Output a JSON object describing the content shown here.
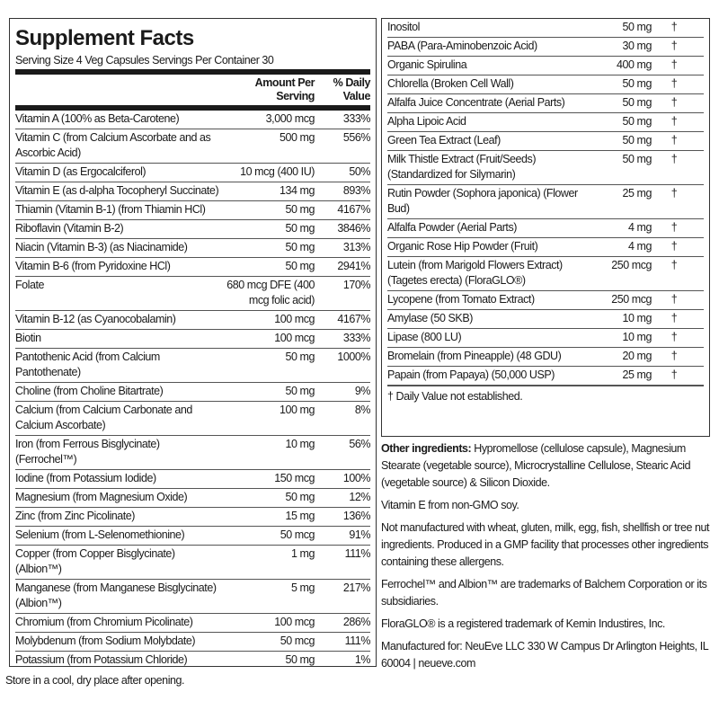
{
  "label": {
    "title": "Supplement Facts",
    "serving": "Serving Size 4 Veg Capsules  Servings Per Container 30",
    "header": {
      "amount": "Amount Per Serving",
      "daily_value": "% Daily Value"
    },
    "rows": [
      [
        "Vitamin A (100% as Beta-Carotene)",
        "3,000 mcg",
        "333%"
      ],
      [
        "Vitamin C (from Calcium Ascorbate and as Ascorbic Acid)",
        "500 mg",
        "556%"
      ],
      [
        "Vitamin D (as Ergocalciferol)",
        "10 mcg (400 IU)",
        "50%"
      ],
      [
        "Vitamin E (as d-alpha Tocopheryl Succinate)",
        "134 mg",
        "893%"
      ],
      [
        "Thiamin (Vitamin B-1) (from Thiamin HCl)",
        "50 mg",
        "4167%"
      ],
      [
        "Riboflavin (Vitamin B-2)",
        "50 mg",
        "3846%"
      ],
      [
        "Niacin (Vitamin B-3) (as Niacinamide)",
        "50 mg",
        "313%"
      ],
      [
        "Vitamin B-6 (from Pyridoxine HCl)",
        "50 mg",
        "2941%"
      ],
      [
        "Folate",
        "680 mcg DFE (400 mcg folic acid)",
        "170%"
      ],
      [
        "Vitamin B-12 (as Cyanocobalamin)",
        "100 mcg",
        "4167%"
      ],
      [
        "Biotin",
        "100 mcg",
        "333%"
      ],
      [
        "Pantothenic Acid (from Calcium Pantothenate)",
        "50 mg",
        "1000%"
      ],
      [
        "Choline (from Choline Bitartrate)",
        "50 mg",
        "9%"
      ],
      [
        "Calcium (from Calcium Carbonate and Calcium Ascorbate)",
        "100 mg",
        "8%"
      ],
      [
        "Iron (from Ferrous Bisglycinate) (Ferrochel™)",
        "10 mg",
        "56%"
      ],
      [
        "Iodine (from Potassium Iodide)",
        "150 mcg",
        "100%"
      ],
      [
        "Magnesium (from Magnesium Oxide)",
        "50 mg",
        "12%"
      ],
      [
        "Zinc (from Zinc Picolinate)",
        "15 mg",
        "136%"
      ],
      [
        "Selenium (from L-Selenomethionine)",
        "50 mcg",
        "91%"
      ],
      [
        "Copper (from Copper Bisglycinate) (Albion™)",
        "1 mg",
        "111%"
      ],
      [
        "Manganese (from Manganese Bisglycinate) (Albion™)",
        "5 mg",
        "217%"
      ],
      [
        "Chromium (from Chromium Picolinate)",
        "100 mcg",
        "286%"
      ],
      [
        "Molybdenum (from Sodium Molybdate)",
        "50 mcg",
        "111%"
      ],
      [
        "Potassium (from Potassium Chloride)",
        "50 mg",
        "1%"
      ]
    ],
    "right_rows": [
      [
        "Inositol",
        "50 mg",
        "†"
      ],
      [
        "PABA (Para-Aminobenzoic Acid)",
        "30 mg",
        "†"
      ],
      [
        "Organic Spirulina",
        "400 mg",
        "†"
      ],
      [
        "Chlorella (Broken Cell Wall)",
        "50 mg",
        "†"
      ],
      [
        "Alfalfa Juice Concentrate (Aerial Parts)",
        "50 mg",
        "†"
      ],
      [
        "Alpha Lipoic Acid",
        "50 mg",
        "†"
      ],
      [
        "Green Tea Extract (Leaf)",
        "50 mg",
        "†"
      ],
      [
        "Milk Thistle Extract (Fruit/Seeds) (Standardized for Silymarin)",
        "50 mg",
        "†"
      ],
      [
        "Rutin Powder (Sophora japonica) (Flower Bud)",
        "25 mg",
        "†"
      ],
      [
        "Alfalfa Powder (Aerial Parts)",
        "4 mg",
        "†"
      ],
      [
        "Organic Rose Hip Powder (Fruit)",
        "4 mg",
        "†"
      ],
      [
        "Lutein (from Marigold Flowers Extract) (Tagetes erecta) (FloraGLO®)",
        "250 mcg",
        "†"
      ],
      [
        "Lycopene (from Tomato Extract)",
        "250 mcg",
        "†"
      ],
      [
        "Amylase (50 SKB)",
        "10 mg",
        "†"
      ],
      [
        "Lipase (800 LU)",
        "10 mg",
        "†"
      ],
      [
        "Bromelain (from Pineapple) (48 GDU)",
        "20 mg",
        "†"
      ],
      [
        "Papain (from Papaya) (50,000 USP)",
        "25 mg",
        "†"
      ]
    ],
    "dagger_note": "† Daily Value not established.",
    "other_ingredients": {
      "label": "Other ingredients:",
      "text": "Hypromellose (cellulose capsule), Magnesium Stearate (vegetable source), Microcrystalline Cellulose, Stearic Acid (vegetable source) & Silicon Dioxide."
    },
    "notes": [
      "Vitamin E from non-GMO soy.",
      "Not manufactured with wheat, gluten, milk, egg, fish, shellfish or tree nut ingredients. Produced in a GMP facility that processes other ingredients containing these allergens.",
      "Ferrochel™ and Albion™ are trademarks of Balchem Corporation or its subsidiaries.",
      "FloraGLO® is a registered trademark of Kemin Industires, Inc.",
      "Manufactured for:  NeuEve LLC 330 W Campus Dr Arlington Heights, IL 60004 | neueve.com"
    ],
    "store": "Store in a cool, dry place after opening."
  }
}
